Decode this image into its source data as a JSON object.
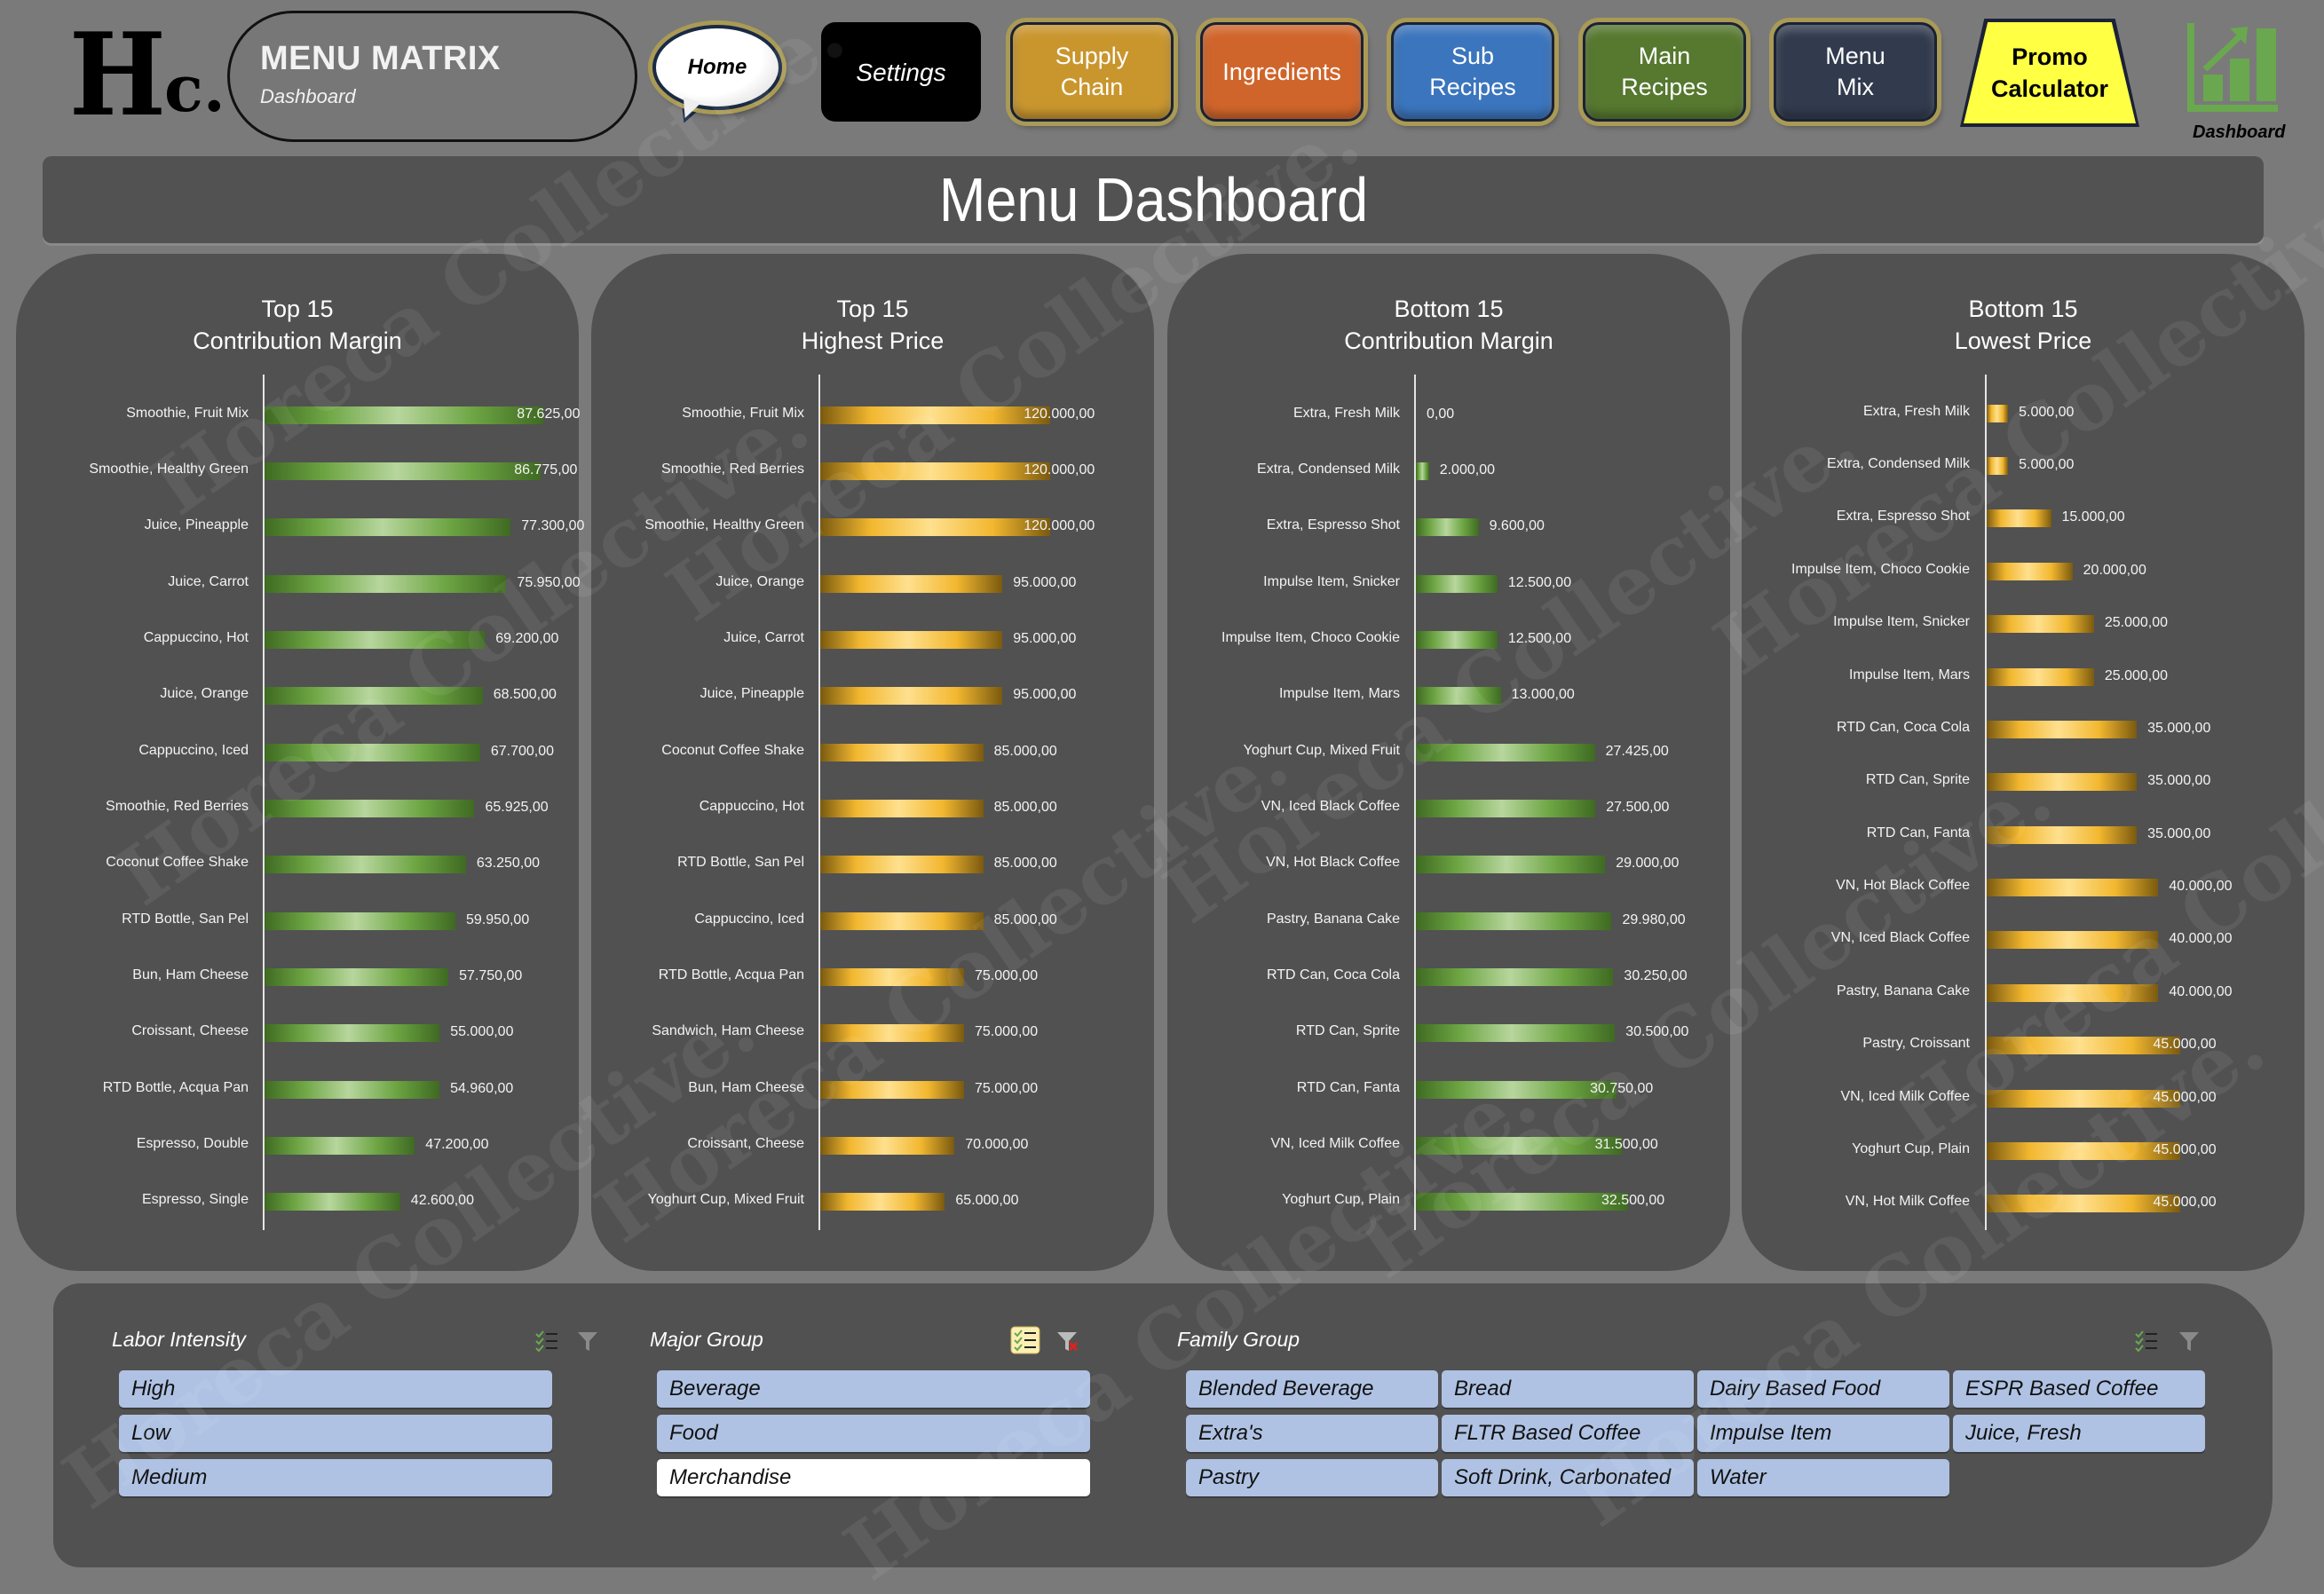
{
  "header": {
    "logo_big": "H",
    "logo_small": "c.",
    "app_title": "MENU MATRIX",
    "app_subtitle": "Dashboard",
    "nav": {
      "home": "Home",
      "settings": "Settings",
      "supply_chain": "Supply\nChain",
      "ingredients": "Ingredients",
      "sub_recipes": "Sub\nRecipes",
      "main_recipes": "Main\nRecipes",
      "menu_mix": "Menu\nMix",
      "promo_calculator": "Promo\nCalculator",
      "dashboard": "Dashboard"
    },
    "colors": {
      "supply_chain": "#c9962e",
      "ingredients": "#d0652b",
      "sub_recipes": "#3b75bd",
      "main_recipes": "#56782f",
      "menu_mix": "#323b4e",
      "promo_calculator": "#ffff44",
      "dashboard_icon": "#6aa84f"
    }
  },
  "page_title": "Menu Dashboard",
  "watermark": "Horeca Collective.",
  "chart_data": [
    {
      "type": "bar",
      "orientation": "horizontal",
      "title": "Top 15\nContribution Margin",
      "bar_color": "green",
      "categories": [
        "Smoothie, Fruit Mix",
        "Smoothie, Healthy Green",
        "Juice, Pineapple",
        "Juice, Carrot",
        "Cappuccino, Hot",
        "Juice, Orange",
        "Cappuccino, Iced",
        "Smoothie, Red Berries",
        "Coconut Coffee Shake",
        "RTD Bottle, San Pel",
        "Bun, Ham Cheese",
        "Croissant, Cheese",
        "RTD Bottle, Acqua Pan",
        "Espresso, Double",
        "Espresso, Single"
      ],
      "values": [
        87625,
        86775,
        77300,
        75950,
        69200,
        68500,
        67700,
        65925,
        63250,
        59950,
        57750,
        55000,
        54960,
        47200,
        42600
      ],
      "labels": [
        "87.625,00",
        "86.775,00",
        "77.300,00",
        "75.950,00",
        "69.200,00",
        "68.500,00",
        "67.700,00",
        "65.925,00",
        "63.250,00",
        "59.950,00",
        "57.750,00",
        "55.000,00",
        "54.960,00",
        "47.200,00",
        "42.600,00"
      ],
      "xlim": [
        0,
        92000
      ]
    },
    {
      "type": "bar",
      "orientation": "horizontal",
      "title": "Top 15\nHighest Price",
      "bar_color": "gold",
      "categories": [
        "Smoothie, Fruit Mix",
        "Smoothie, Red Berries",
        "Smoothie, Healthy Green",
        "Juice, Orange",
        "Juice, Carrot",
        "Juice, Pineapple",
        "Coconut Coffee Shake",
        "Cappuccino, Hot",
        "RTD Bottle, San Pel",
        "Cappuccino, Iced",
        "RTD Bottle, Acqua Pan",
        "Sandwich, Ham Cheese",
        "Bun, Ham Cheese",
        "Croissant, Cheese",
        "Yoghurt Cup, Mixed Fruit"
      ],
      "values": [
        120000,
        120000,
        120000,
        95000,
        95000,
        95000,
        85000,
        85000,
        85000,
        85000,
        75000,
        75000,
        75000,
        70000,
        65000
      ],
      "labels": [
        "120.000,00",
        "120.000,00",
        "120.000,00",
        "95.000,00",
        "95.000,00",
        "95.000,00",
        "85.000,00",
        "85.000,00",
        "85.000,00",
        "85.000,00",
        "75.000,00",
        "75.000,00",
        "75.000,00",
        "70.000,00",
        "65.000,00"
      ],
      "xlim": [
        0,
        125000
      ]
    },
    {
      "type": "bar",
      "orientation": "horizontal",
      "title": "Bottom 15\nContribution Margin",
      "bar_color": "green",
      "categories": [
        "Extra, Fresh Milk",
        "Extra, Condensed Milk",
        "Extra, Espresso Shot",
        "Impulse Item, Snicker",
        "Impulse Item, Choco Cookie",
        "Impulse Item, Mars",
        "Yoghurt Cup, Mixed Fruit",
        "VN, Iced Black Coffee",
        "VN, Hot Black Coffee",
        "Pastry, Banana Cake",
        "RTD Can, Coca Cola",
        "RTD Can, Sprite",
        "RTD Can, Fanta",
        "VN, Iced Milk Coffee",
        "Yoghurt Cup, Plain"
      ],
      "values": [
        0,
        2000,
        9600,
        12500,
        12500,
        13000,
        27425,
        27500,
        29000,
        29980,
        30250,
        30500,
        30750,
        31500,
        32500
      ],
      "labels": [
        "0,00",
        "2.000,00",
        "9.600,00",
        "12.500,00",
        "12.500,00",
        "13.000,00",
        "27.425,00",
        "27.500,00",
        "29.000,00",
        "29.980,00",
        "30.250,00",
        "30.500,00",
        "30.750,00",
        "31.500,00",
        "32.500,00"
      ],
      "xlim": [
        0,
        34000
      ]
    },
    {
      "type": "bar",
      "orientation": "horizontal",
      "title": "Bottom 15\nLowest Price",
      "bar_color": "gold",
      "categories": [
        "Extra, Fresh Milk",
        "Extra, Condensed Milk",
        "Extra, Espresso Shot",
        "Impulse Item, Choco Cookie",
        "Impulse Item, Snicker",
        "Impulse Item, Mars",
        "RTD Can, Coca Cola",
        "RTD Can, Sprite",
        "RTD Can, Fanta",
        "VN, Hot Black Coffee",
        "VN, Iced Black Coffee",
        "Pastry, Banana Cake",
        "Pastry, Croissant",
        "VN, Iced Milk Coffee",
        "Yoghurt Cup, Plain",
        "VN, Hot Milk Coffee"
      ],
      "values": [
        5000,
        5000,
        15000,
        20000,
        25000,
        25000,
        35000,
        35000,
        35000,
        40000,
        40000,
        40000,
        45000,
        45000,
        45000,
        45000
      ],
      "labels": [
        "5.000,00",
        "5.000,00",
        "15.000,00",
        "20.000,00",
        "25.000,00",
        "25.000,00",
        "35.000,00",
        "35.000,00",
        "35.000,00",
        "40.000,00",
        "40.000,00",
        "40.000,00",
        "45.000,00",
        "45.000,00",
        "45.000,00",
        "45.000,00"
      ],
      "xlim": [
        0,
        48000
      ]
    }
  ],
  "slicers": {
    "labor_intensity": {
      "title": "Labor Intensity",
      "items": [
        {
          "label": "High",
          "selected": true
        },
        {
          "label": "Low",
          "selected": true
        },
        {
          "label": "Medium",
          "selected": true
        }
      ]
    },
    "major_group": {
      "title": "Major Group",
      "multi_select_active": true,
      "filter_cleared": false,
      "items": [
        {
          "label": "Beverage",
          "selected": true
        },
        {
          "label": "Food",
          "selected": true
        },
        {
          "label": "Merchandise",
          "selected": false
        }
      ]
    },
    "family_group": {
      "title": "Family Group",
      "items": [
        {
          "label": "Blended Beverage",
          "selected": true
        },
        {
          "label": "Bread",
          "selected": true
        },
        {
          "label": "Dairy Based Food",
          "selected": true
        },
        {
          "label": "ESPR Based Coffee",
          "selected": true
        },
        {
          "label": "Extra's",
          "selected": true
        },
        {
          "label": "FLTR Based Coffee",
          "selected": true
        },
        {
          "label": "Impulse Item",
          "selected": true
        },
        {
          "label": "Juice, Fresh",
          "selected": true
        },
        {
          "label": "Pastry",
          "selected": true
        },
        {
          "label": "Soft Drink, Carbonated",
          "selected": true
        },
        {
          "label": "Water",
          "selected": true
        }
      ]
    }
  }
}
